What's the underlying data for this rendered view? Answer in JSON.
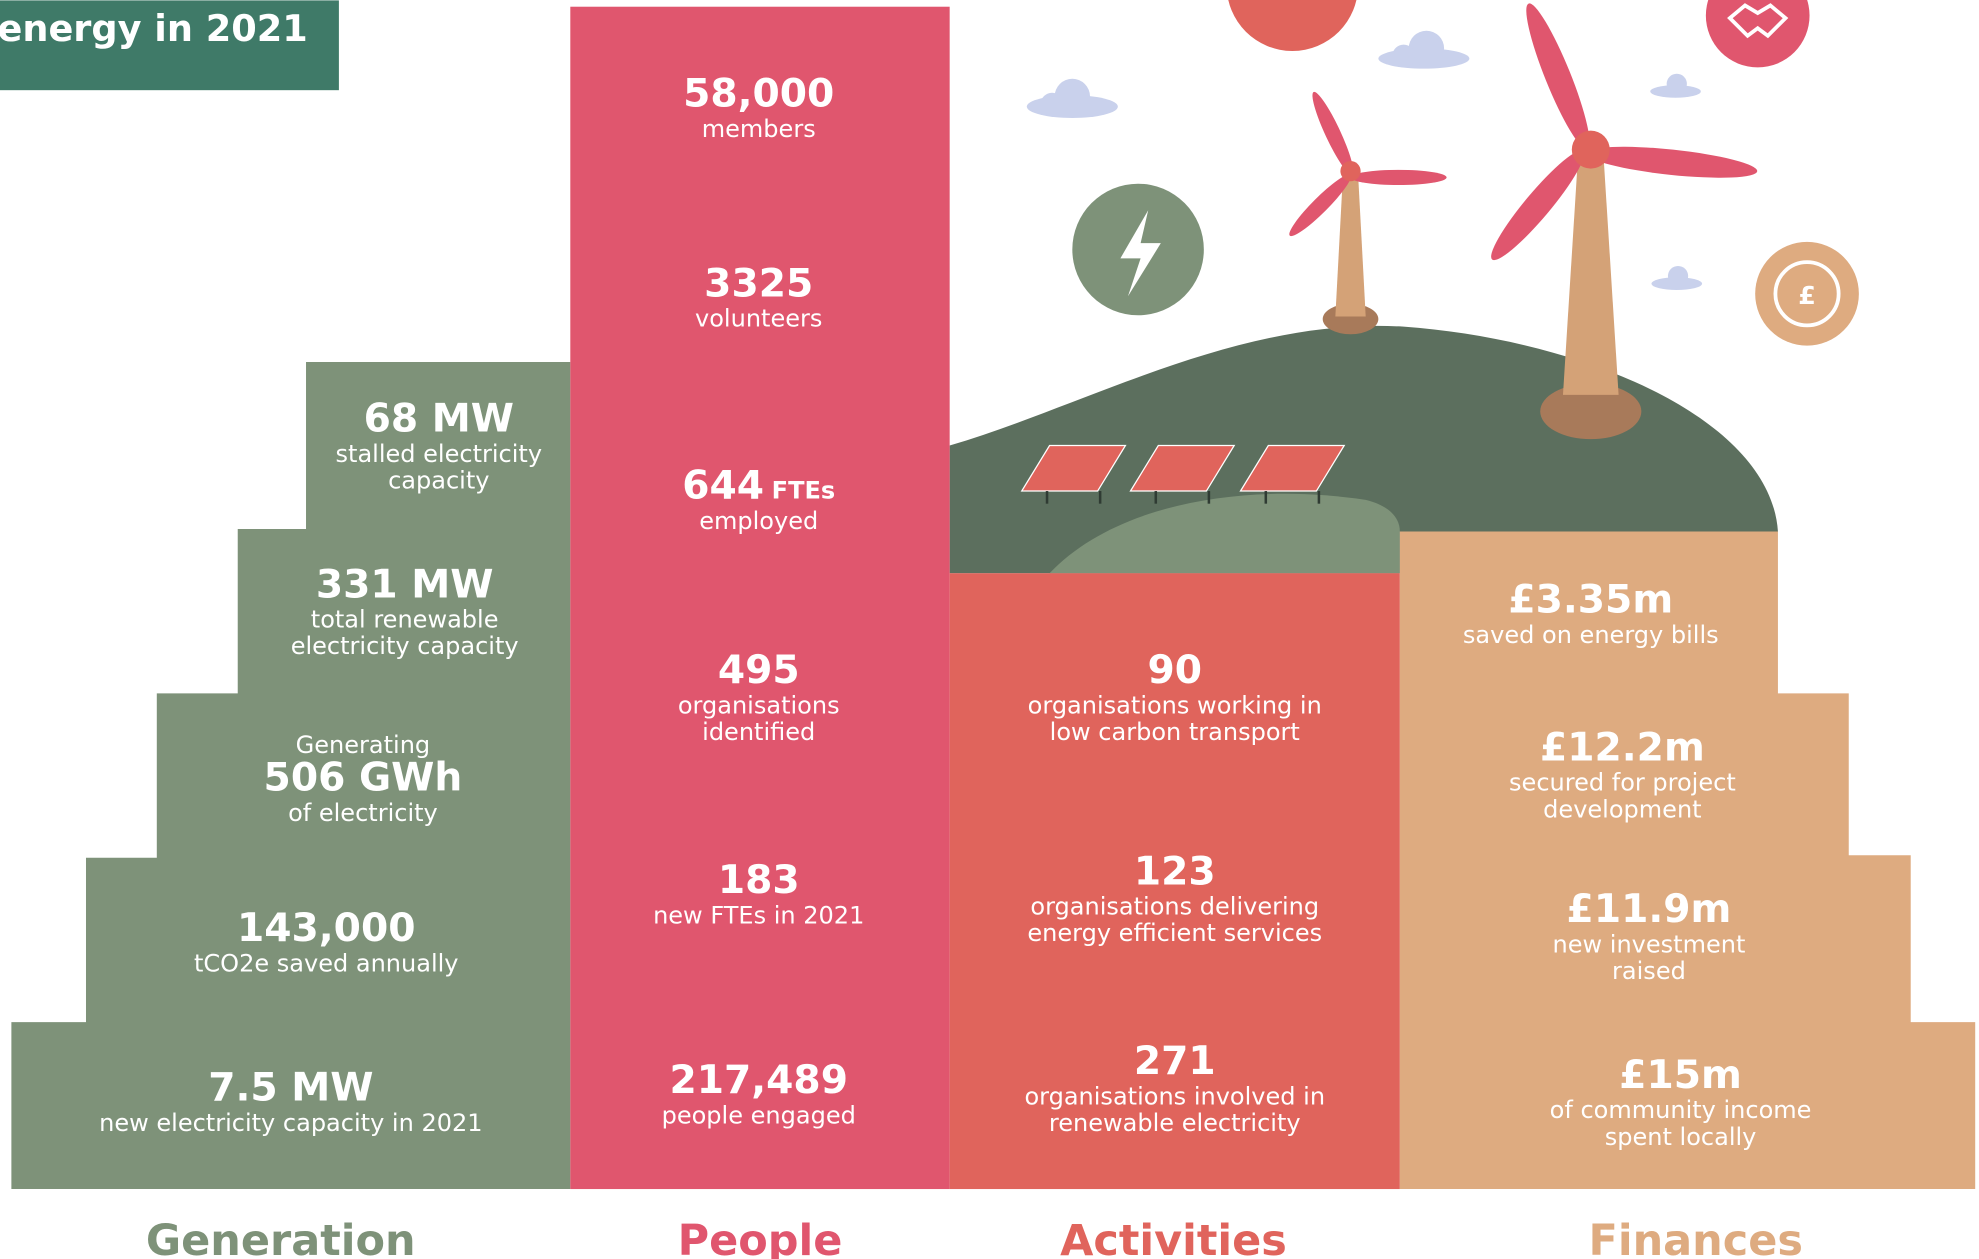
{
  "title": "energy in 2021",
  "icons": {
    "coin": "£"
  },
  "columns": [
    {
      "name": "Generation",
      "items": [
        {
          "value": "68 MW",
          "lines": [
            "stalled electricity",
            "capacity"
          ]
        },
        {
          "value": "331 MW",
          "lines": [
            "total renewable",
            "electricity capacity"
          ]
        },
        {
          "prefix": "Generating",
          "value": "506 GWh",
          "lines": [
            "of electricity"
          ]
        },
        {
          "value": "143,000",
          "lines": [
            "tCO2e saved annually"
          ]
        },
        {
          "value": "7.5 MW",
          "lines": [
            "new electricity capacity in 2021"
          ]
        }
      ]
    },
    {
      "name": "People",
      "items": [
        {
          "value": "58,000",
          "lines": [
            "members"
          ]
        },
        {
          "value": "3325",
          "lines": [
            "volunteers"
          ]
        },
        {
          "value": "644",
          "unit": "FTEs",
          "lines": [
            "employed"
          ]
        },
        {
          "value": "495",
          "lines": [
            "organisations",
            "identified"
          ]
        },
        {
          "value": "183",
          "lines": [
            "new FTEs in 2021"
          ]
        },
        {
          "value": "217,489",
          "lines": [
            "people engaged"
          ]
        }
      ]
    },
    {
      "name": "Activities",
      "items": [
        {
          "value": "90",
          "lines": [
            "organisations working in",
            "low carbon transport"
          ]
        },
        {
          "value": "123",
          "lines": [
            "organisations delivering",
            "energy efficient services"
          ]
        },
        {
          "value": "271",
          "lines": [
            "organisations involved in",
            "renewable electricity"
          ]
        }
      ]
    },
    {
      "name": "Finances",
      "items": [
        {
          "value": "£3.35m",
          "lines": [
            "saved on energy bills"
          ]
        },
        {
          "value": "£12.2m",
          "lines": [
            "secured for project",
            "development"
          ]
        },
        {
          "value": "£11.9m",
          "lines": [
            "new investment",
            "raised"
          ]
        },
        {
          "value": "£15m",
          "lines": [
            "of community income",
            "spent locally"
          ]
        }
      ]
    }
  ]
}
